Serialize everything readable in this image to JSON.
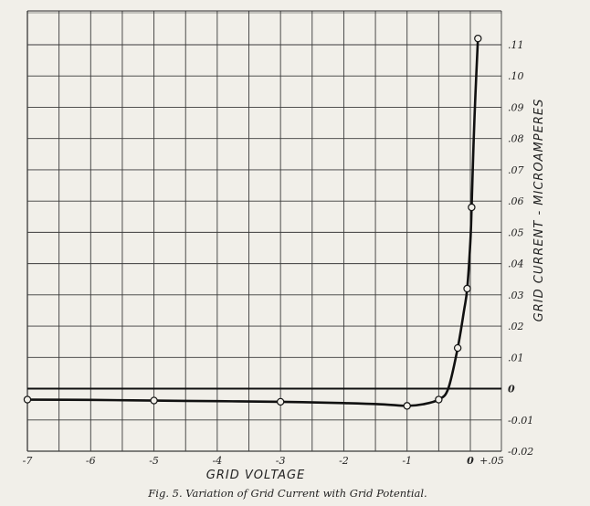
{
  "chart_data": {
    "type": "line",
    "title": "",
    "caption": "Fig. 5. Variation of Grid Current with Grid Potential.",
    "xlabel": "GRID VOLTAGE",
    "ylabel": "GRID CURRENT - MICROAMPERES",
    "xlim": [
      -7,
      0.15
    ],
    "ylim": [
      -0.02,
      0.12
    ],
    "grid": true,
    "x_ticks": [
      -7,
      -6,
      -5,
      -4,
      -3,
      -2,
      -1,
      0,
      0.05
    ],
    "x_tick_labels": [
      "-7",
      "-6",
      "-5",
      "-4",
      "-3",
      "-2",
      "-1",
      "0",
      "+.05"
    ],
    "y_ticks": [
      0.11,
      0.1,
      0.09,
      0.08,
      0.07,
      0.06,
      0.05,
      0.04,
      0.03,
      0.02,
      0.01,
      0,
      -0.01,
      -0.02
    ],
    "y_tick_labels": [
      ".11",
      ".10",
      ".09",
      ".08",
      ".07",
      ".06",
      ".05",
      ".04",
      ".03",
      ".02",
      ".01",
      "0",
      "-0.01",
      "-0.02"
    ],
    "series": [
      {
        "points": [
          {
            "x": -7,
            "y": -0.0035
          },
          {
            "x": -5,
            "y": -0.0038
          },
          {
            "x": -3,
            "y": -0.0042
          },
          {
            "x": -1,
            "y": -0.0055
          },
          {
            "x": -0.5,
            "y": -0.0035
          },
          {
            "x": -0.2,
            "y": 0.013
          },
          {
            "x": -0.05,
            "y": 0.032
          },
          {
            "x": 0.02,
            "y": 0.058
          },
          {
            "x": 0.12,
            "y": 0.112
          }
        ],
        "curve": [
          [
            -7,
            -0.0035
          ],
          [
            -6,
            -0.0036
          ],
          [
            -5,
            -0.0038
          ],
          [
            -4,
            -0.004
          ],
          [
            -3,
            -0.0042
          ],
          [
            -2,
            -0.0046
          ],
          [
            -1.4,
            -0.005
          ],
          [
            -1,
            -0.0055
          ],
          [
            -0.75,
            -0.005
          ],
          [
            -0.5,
            -0.0035
          ],
          [
            -0.35,
            0.0
          ],
          [
            -0.2,
            0.013
          ],
          [
            -0.1,
            0.025
          ],
          [
            -0.05,
            0.032
          ],
          [
            0.0,
            0.047
          ],
          [
            0.02,
            0.058
          ],
          [
            0.05,
            0.078
          ],
          [
            0.08,
            0.094
          ],
          [
            0.12,
            0.112
          ]
        ]
      }
    ]
  }
}
